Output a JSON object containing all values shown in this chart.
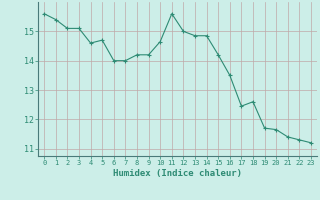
{
  "x": [
    0,
    1,
    2,
    3,
    4,
    5,
    6,
    7,
    8,
    9,
    10,
    11,
    12,
    13,
    14,
    15,
    16,
    17,
    18,
    19,
    20,
    21,
    22,
    23
  ],
  "y": [
    15.6,
    15.4,
    15.1,
    15.1,
    14.6,
    14.7,
    14.0,
    14.0,
    14.2,
    14.2,
    14.65,
    15.6,
    15.0,
    14.85,
    14.85,
    14.2,
    13.5,
    12.45,
    12.6,
    11.7,
    11.65,
    11.4,
    11.3,
    11.2
  ],
  "line_color": "#2e8b74",
  "bg_color": "#cceee8",
  "grid_color": "#c0a8a8",
  "xlabel": "Humidex (Indice chaleur)",
  "xlim": [
    -0.5,
    23.5
  ],
  "ylim": [
    10.75,
    16.0
  ],
  "yticks": [
    11,
    12,
    13,
    14,
    15
  ],
  "xticks": [
    0,
    1,
    2,
    3,
    4,
    5,
    6,
    7,
    8,
    9,
    10,
    11,
    12,
    13,
    14,
    15,
    16,
    17,
    18,
    19,
    20,
    21,
    22,
    23
  ]
}
